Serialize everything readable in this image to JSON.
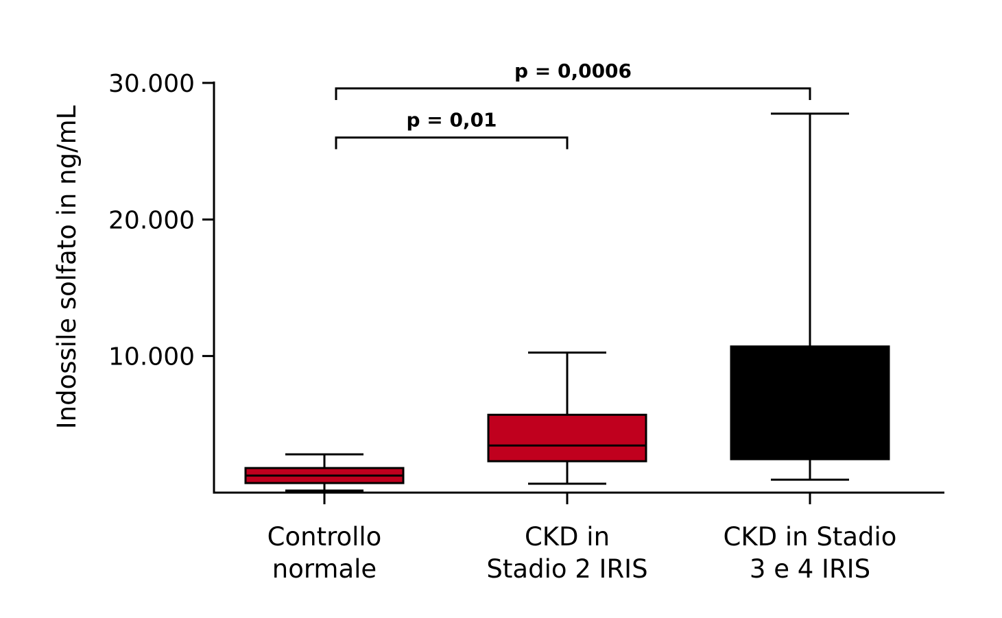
{
  "chart_data": {
    "type": "box",
    "title": "",
    "xlabel": "",
    "ylabel": "Indossile solfato in ng/mL",
    "ylim": [
      0,
      30000
    ],
    "yticks": [
      10000,
      20000,
      30000
    ],
    "ytick_labels": [
      "10.000",
      "20.000",
      "30.000"
    ],
    "grid": false,
    "categories": [
      [
        "Controllo",
        "normale"
      ],
      [
        "CKD in",
        "Stadio 2 IRIS"
      ],
      [
        "CKD in Stadio",
        "3 e 4 IRIS"
      ]
    ],
    "boxes": [
      {
        "whisker_low": 150,
        "q1": 700,
        "median": 1250,
        "q3": 1800,
        "whisker_high": 2800,
        "color": "#c0001e"
      },
      {
        "whisker_low": 650,
        "q1": 2300,
        "median": 3450,
        "q3": 5700,
        "whisker_high": 10250,
        "color": "#c0001e"
      },
      {
        "whisker_low": 950,
        "q1": 2450,
        "median": null,
        "q3": 10700,
        "whisker_high": 27750,
        "color": "#000000"
      }
    ],
    "annotations": [
      {
        "from": 0,
        "to": 1,
        "text": "p = 0,01",
        "level": 26000
      },
      {
        "from": 0,
        "to": 2,
        "text": "p = 0,0006",
        "level": 29600
      }
    ]
  }
}
